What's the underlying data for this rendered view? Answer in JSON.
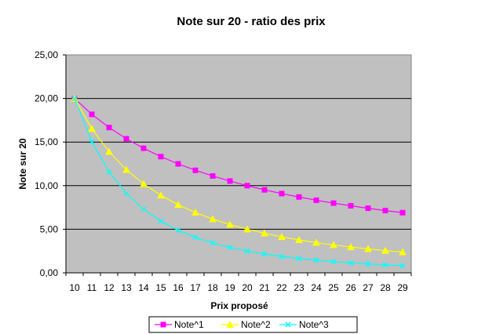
{
  "chart_data": {
    "type": "line",
    "title": "Note sur 20 - ratio des prix",
    "xlabel": "Prix proposé",
    "ylabel": "Note sur 20",
    "categories": [
      "10",
      "11",
      "12",
      "13",
      "14",
      "15",
      "16",
      "17",
      "18",
      "19",
      "20",
      "21",
      "22",
      "23",
      "24",
      "25",
      "26",
      "27",
      "28",
      "29"
    ],
    "y_tick_labels": [
      "0,00",
      "5,00",
      "10,00",
      "15,00",
      "20,00",
      "25,00"
    ],
    "ylim": [
      0,
      25
    ],
    "grid": "horizontal",
    "legend_position": "bottom",
    "plot_background": "#c0c0c0",
    "series": [
      {
        "name": "Note^1",
        "color": "#ff00ff",
        "marker": "square",
        "values": [
          20.0,
          18.18,
          16.67,
          15.38,
          14.29,
          13.33,
          12.5,
          11.76,
          11.11,
          10.53,
          10.0,
          9.52,
          9.09,
          8.7,
          8.33,
          8.0,
          7.69,
          7.41,
          7.14,
          6.9
        ]
      },
      {
        "name": "Note^2",
        "color": "#ffff00",
        "marker": "triangle",
        "values": [
          20.0,
          16.53,
          13.89,
          11.83,
          10.2,
          8.89,
          7.81,
          6.92,
          6.17,
          5.54,
          5.0,
          4.54,
          4.13,
          3.78,
          3.47,
          3.2,
          2.96,
          2.74,
          2.55,
          2.38
        ]
      },
      {
        "name": "Note^3",
        "color": "#00ffff",
        "marker": "x",
        "values": [
          20.0,
          15.03,
          11.57,
          9.1,
          7.29,
          5.93,
          4.88,
          4.07,
          3.43,
          2.92,
          2.5,
          2.16,
          1.88,
          1.64,
          1.45,
          1.28,
          1.14,
          1.02,
          0.91,
          0.82
        ]
      }
    ]
  }
}
